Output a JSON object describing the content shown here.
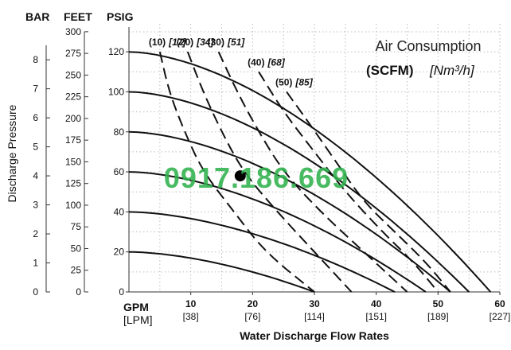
{
  "chart_data": {
    "type": "line",
    "title": "Air Consumption",
    "subtitle_bold": "(SCFM)",
    "subtitle_italic": "[Nm³/h]",
    "xlabel": "Water Discharge Flow Rates",
    "x_unit": "GPM",
    "x_unit_alt": "[LPM]",
    "xlim": [
      0,
      60
    ],
    "x_ticks": [
      {
        "v": 10,
        "label": "10",
        "alt": "[38]"
      },
      {
        "v": 20,
        "label": "20",
        "alt": "[76]"
      },
      {
        "v": 30,
        "label": "30",
        "alt": "[114]"
      },
      {
        "v": 40,
        "label": "40",
        "alt": "[151]"
      },
      {
        "v": 50,
        "label": "50",
        "alt": "[189]"
      },
      {
        "v": 60,
        "label": "60",
        "alt": "[227]"
      }
    ],
    "ylabel": "Discharge Pressure",
    "ylim": [
      0,
      130
    ],
    "psig_header": "PSIG",
    "feet_header": "FEET",
    "bar_header": "BAR",
    "psig_ticks": [
      "0",
      "20",
      "40",
      "60",
      "80",
      "100",
      "120"
    ],
    "feet_ticks": [
      "0",
      "25",
      "50",
      "75",
      "100",
      "125",
      "150",
      "175",
      "200",
      "225",
      "250",
      "275",
      "300"
    ],
    "bar_ticks": [
      "0",
      "1",
      "2",
      "3",
      "4",
      "5",
      "6",
      "7",
      "8"
    ],
    "grid": true,
    "series": [
      {
        "kind": "pressure",
        "x": [
          0,
          30
        ],
        "y": [
          20,
          0
        ]
      },
      {
        "kind": "pressure",
        "x": [
          0,
          43
        ],
        "y": [
          40,
          0
        ]
      },
      {
        "kind": "pressure",
        "x": [
          0,
          48
        ],
        "y": [
          60,
          0
        ]
      },
      {
        "kind": "pressure",
        "x": [
          0,
          52
        ],
        "y": [
          80,
          0
        ]
      },
      {
        "kind": "pressure",
        "x": [
          0,
          55
        ],
        "y": [
          100,
          0
        ]
      },
      {
        "kind": "pressure",
        "x": [
          0,
          58.5
        ],
        "y": [
          120,
          0
        ]
      },
      {
        "kind": "air",
        "name": "(10)",
        "name_alt": "[17]",
        "x": [
          5,
          6.5,
          9,
          12,
          17,
          22,
          30
        ],
        "y": [
          120,
          100,
          80,
          60,
          40,
          20,
          0
        ]
      },
      {
        "kind": "air",
        "name": "(20)",
        "name_alt": "[34]",
        "x": [
          9.5,
          12,
          15,
          18.5,
          24,
          30,
          36
        ],
        "y": [
          120,
          100,
          80,
          60,
          40,
          20,
          0
        ]
      },
      {
        "kind": "air",
        "name": "(30)",
        "name_alt": "[51]",
        "x": [
          14.5,
          17.5,
          21,
          25,
          31,
          38,
          45
        ],
        "y": [
          120,
          100,
          80,
          60,
          40,
          20,
          0
        ]
      },
      {
        "kind": "air",
        "name": "(40)",
        "name_alt": "[68]",
        "x": [
          21,
          25,
          30,
          35,
          41,
          46,
          50
        ],
        "y": [
          110,
          90,
          70,
          50,
          30,
          15,
          0
        ]
      },
      {
        "kind": "air",
        "name": "(50)",
        "name_alt": "[85]",
        "x": [
          25.5,
          29,
          33.5,
          38,
          43,
          48,
          52
        ],
        "y": [
          100,
          85,
          65,
          45,
          30,
          15,
          0
        ]
      }
    ],
    "marker": {
      "x": 18,
      "y": 58
    }
  },
  "watermark": "0917.186.669"
}
